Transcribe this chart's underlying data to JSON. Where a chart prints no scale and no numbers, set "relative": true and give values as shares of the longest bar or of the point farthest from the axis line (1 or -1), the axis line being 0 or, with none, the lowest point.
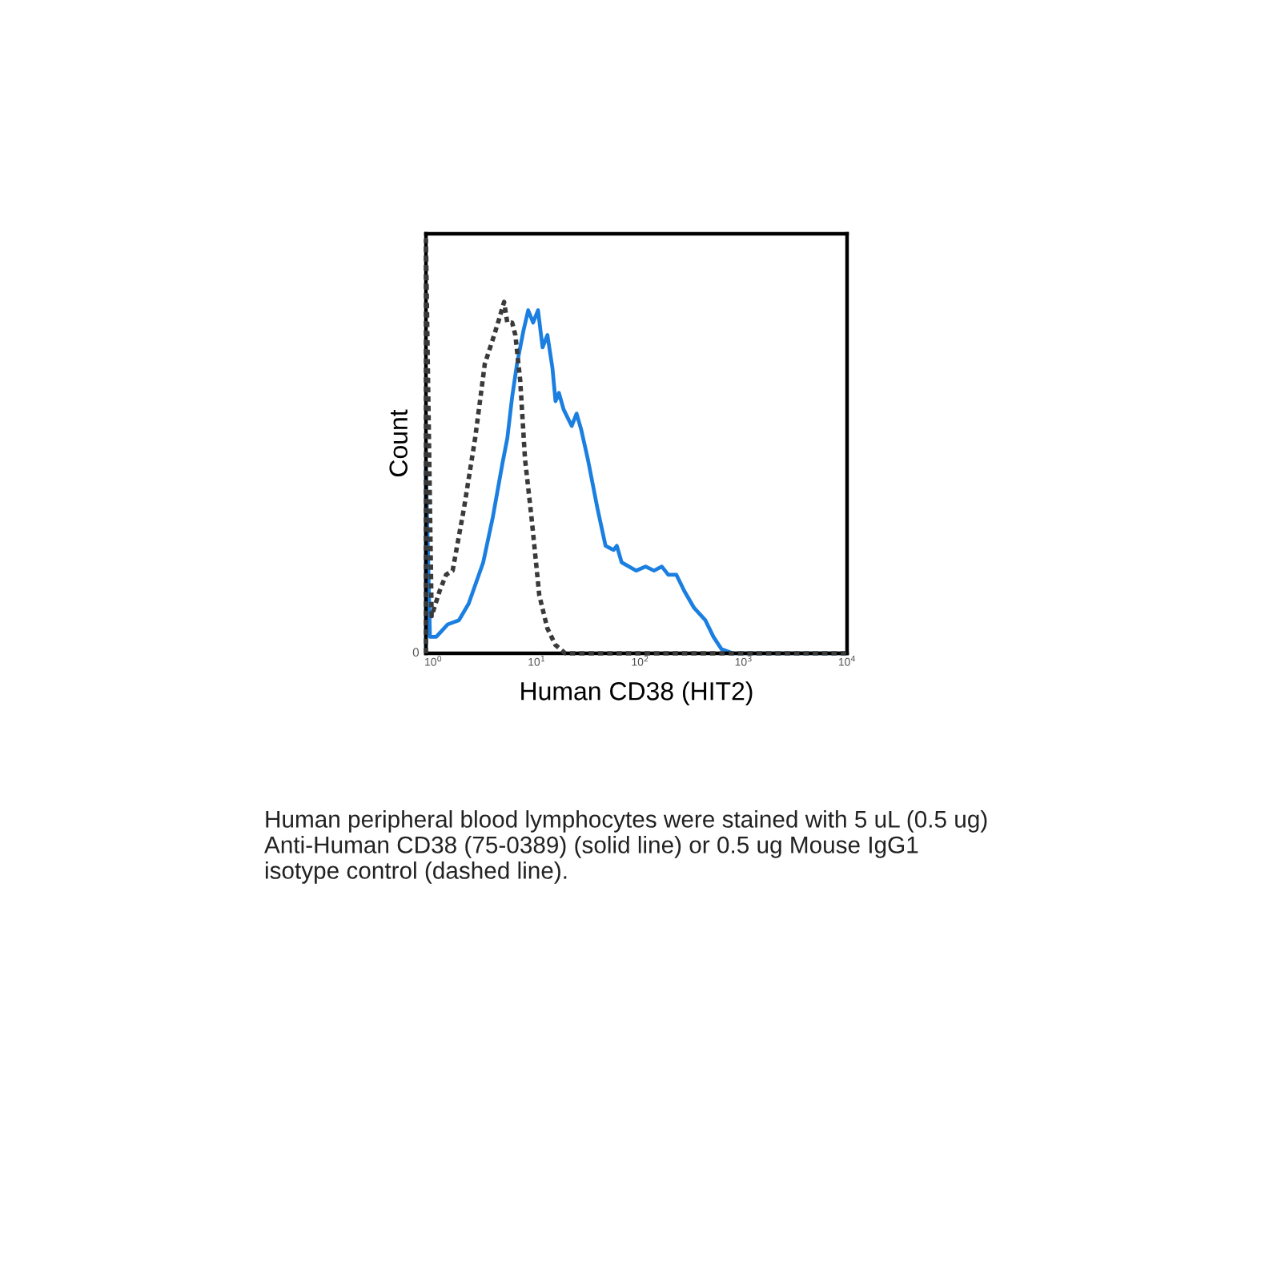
{
  "chart_data": {
    "type": "line",
    "relative": true,
    "xlabel": "Human CD38 (HIT2)",
    "ylabel": "Count",
    "log": "x",
    "xlim": [
      0.85,
      10000
    ],
    "xticks": [
      {
        "value": 1,
        "label": "10$^{0}$"
      },
      {
        "value": 10,
        "label": "10$^{1}$"
      },
      {
        "value": 100,
        "label": "10$^{2}$"
      },
      {
        "value": 1000,
        "label": "10$^{3}$"
      },
      {
        "value": 10000,
        "label": "10$^{4}$"
      }
    ],
    "series": [
      {
        "color": "#1a7fe0",
        "line_style": "solid",
        "x": [
          0.85,
          0.85,
          0.93,
          1.07,
          1.38,
          1.77,
          2.2,
          3.04,
          3.77,
          4.67,
          5.2,
          5.79,
          6.45,
          7.44,
          8.28,
          9.23,
          10.3,
          11.4,
          12.7,
          14.2,
          15.2,
          16.4,
          18.2,
          21.8,
          24.3,
          27.0,
          31.2,
          38.7,
          46.3,
          55.3,
          59.5,
          66.2,
          91.4,
          113,
          136,
          162,
          187,
          224,
          268,
          332,
          427,
          511,
          611,
          785,
          1050,
          10000
        ],
        "values": [
          0,
          0.45,
          0.04,
          0.04,
          0.07,
          0.08,
          0.12,
          0.22,
          0.33,
          0.46,
          0.52,
          0.62,
          0.7,
          0.78,
          0.83,
          0.8,
          0.83,
          0.74,
          0.77,
          0.69,
          0.61,
          0.63,
          0.59,
          0.55,
          0.58,
          0.54,
          0.47,
          0.35,
          0.26,
          0.25,
          0.26,
          0.22,
          0.2,
          0.21,
          0.2,
          0.21,
          0.19,
          0.19,
          0.15,
          0.11,
          0.08,
          0.04,
          0.01,
          0.0,
          0,
          0
        ]
      },
      {
        "color": "#3a3a3a",
        "line_style": "dotted",
        "x": [
          0.85,
          0.85,
          0.965,
          1.15,
          1.33,
          1.54,
          1.98,
          2.54,
          2.83,
          3.15,
          3.77,
          4.35,
          4.84,
          5.2,
          5.79,
          6.22,
          6.93,
          7.71,
          8.9,
          10.6,
          12.7,
          15.2,
          18.9,
          24.3,
          10000
        ],
        "values": [
          0,
          1.0,
          0.09,
          0.15,
          0.19,
          0.2,
          0.35,
          0.52,
          0.61,
          0.7,
          0.76,
          0.81,
          0.85,
          0.8,
          0.8,
          0.77,
          0.66,
          0.47,
          0.33,
          0.14,
          0.06,
          0.02,
          0.0,
          0,
          0
        ]
      }
    ],
    "annotations": [
      "0",
      "Human peripheral blood lymphocytes were stained with 5 uL (0.5 ug)\nAnti-Human CD38 (75-0389) (solid line) or 0.5 ug Mouse IgG1\nisotype control (dashed line)."
    ]
  }
}
